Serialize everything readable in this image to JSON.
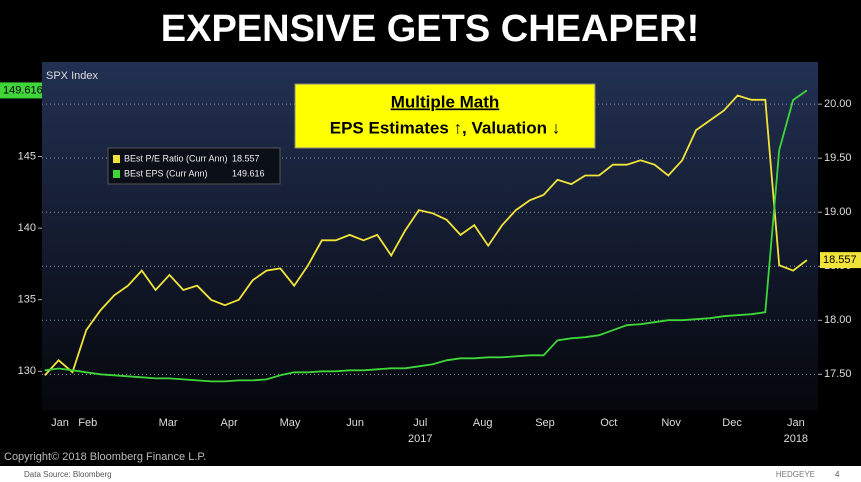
{
  "chart_data": {
    "type": "line",
    "title": "EXPENSIVE GETS CHEAPER!",
    "index_label": "SPX Index",
    "annotation": {
      "heading": "Multiple Math",
      "text": "EPS Estimates ↑, Valuation ↓"
    },
    "x": [
      0,
      1,
      2,
      3,
      4,
      5,
      6,
      7,
      8,
      9,
      10,
      11,
      12,
      13,
      14,
      15,
      16,
      17,
      18,
      19,
      20,
      21,
      22,
      23,
      24,
      25,
      26,
      27,
      28,
      29,
      30,
      31,
      32,
      33,
      34,
      35,
      36,
      37,
      38,
      39,
      40,
      41,
      42,
      43,
      44,
      45,
      46,
      47,
      48,
      49,
      50,
      51,
      52,
      53,
      54,
      55
    ],
    "xlim": [
      -0.2,
      55.8
    ],
    "xticks": [
      {
        "value": 1.1,
        "label": "Jan"
      },
      {
        "value": 3.1,
        "label": "Feb"
      },
      {
        "value": 8.9,
        "label": "Mar"
      },
      {
        "value": 13.3,
        "label": "Apr"
      },
      {
        "value": 17.7,
        "label": "May"
      },
      {
        "value": 22.4,
        "label": "Jun"
      },
      {
        "value": 27.1,
        "label": "Jul"
      },
      {
        "value": 31.6,
        "label": "Aug"
      },
      {
        "value": 36.1,
        "label": "Sep"
      },
      {
        "value": 40.7,
        "label": "Oct"
      },
      {
        "value": 45.2,
        "label": "Nov"
      },
      {
        "value": 49.6,
        "label": "Dec"
      },
      {
        "value": 54.2,
        "label": "Jan"
      }
    ],
    "year_labels": [
      {
        "value": 27.1,
        "label": "2017"
      },
      {
        "value": 54.2,
        "label": "2018"
      }
    ],
    "ylim": [
      127.3,
      151.6
    ],
    "yticks": [
      130,
      135,
      140,
      145
    ],
    "y2lim": [
      17.17,
      20.39
    ],
    "y2ticks": [
      {
        "value": 17.5,
        "label": "17.50"
      },
      {
        "value": 18,
        "label": "18.00"
      },
      {
        "value": 18.5,
        "label": "18.50"
      },
      {
        "value": 19,
        "label": "19.00"
      },
      {
        "value": 19.5,
        "label": "19.50"
      },
      {
        "value": 20,
        "label": "20.00"
      }
    ],
    "grid": true,
    "series": [
      {
        "name": "BEst P/E Ratio (Curr Ann)",
        "color": "#f2e33a",
        "axis": "y2",
        "values": [
          17.49,
          17.63,
          17.52,
          17.91,
          18.09,
          18.23,
          18.32,
          18.46,
          18.28,
          18.42,
          18.28,
          18.32,
          18.19,
          18.14,
          18.19,
          18.37,
          18.46,
          18.48,
          18.32,
          18.51,
          18.74,
          18.74,
          18.79,
          18.74,
          18.79,
          18.6,
          18.83,
          19.02,
          18.99,
          18.93,
          18.79,
          18.88,
          18.69,
          18.88,
          19.02,
          19.11,
          19.16,
          19.3,
          19.26,
          19.34,
          19.34,
          19.44,
          19.44,
          19.48,
          19.44,
          19.34,
          19.48,
          19.76,
          19.85,
          19.94,
          20.08,
          20.04,
          20.04,
          18.51,
          18.46,
          18.557
        ]
      },
      {
        "name": "BEst EPS (Curr Ann)",
        "color": "#3fd63a",
        "axis": "y",
        "values": [
          130.07,
          130.2,
          130.07,
          129.93,
          129.79,
          129.72,
          129.65,
          129.58,
          129.51,
          129.51,
          129.44,
          129.37,
          129.3,
          129.3,
          129.37,
          129.37,
          129.44,
          129.72,
          129.93,
          129.93,
          130,
          130,
          130.07,
          130.07,
          130.14,
          130.21,
          130.21,
          130.35,
          130.49,
          130.77,
          130.91,
          130.91,
          130.98,
          130.98,
          131.05,
          131.12,
          131.12,
          132.17,
          132.31,
          132.38,
          132.52,
          132.87,
          133.22,
          133.29,
          133.43,
          133.57,
          133.57,
          133.64,
          133.71,
          133.85,
          133.92,
          133.99,
          134.13,
          145.45,
          148.95,
          149.616
        ]
      }
    ]
  },
  "footer": {
    "copyright": "Copyright© 2018 Bloomberg Finance L.P.",
    "source": "Data Source:  Bloomberg",
    "brand": "HEDGEYE",
    "page": "4"
  }
}
